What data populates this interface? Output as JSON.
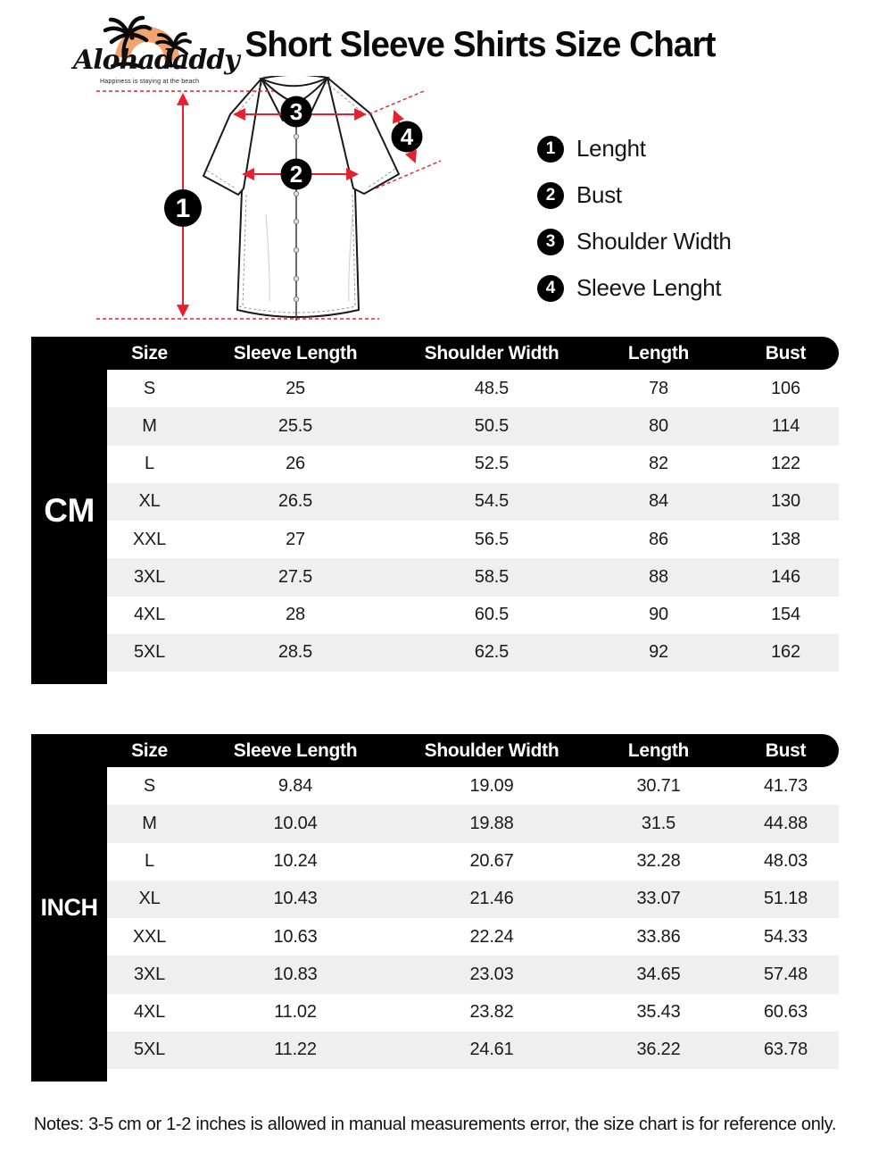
{
  "brand": {
    "name": "Alohadaddy",
    "tagline": "Happiness is staying at the beach"
  },
  "title": "Short Sleeve Shirts Size Chart",
  "legend": {
    "items": [
      {
        "num": "1",
        "label": "Lenght"
      },
      {
        "num": "2",
        "label": "Bust"
      },
      {
        "num": "3",
        "label": "Shoulder Width"
      },
      {
        "num": "4",
        "label": "Sleeve Lenght"
      }
    ]
  },
  "diagram": {
    "marker_1": "1",
    "marker_2": "2",
    "marker_3": "3",
    "marker_4": "4"
  },
  "tables": [
    {
      "unit": "CM",
      "headers": [
        "Size",
        "Sleeve Length",
        "Shoulder Width",
        "Length",
        "Bust"
      ],
      "rows": [
        [
          "S",
          "25",
          "48.5",
          "78",
          "106"
        ],
        [
          "M",
          "25.5",
          "50.5",
          "80",
          "114"
        ],
        [
          "L",
          "26",
          "52.5",
          "82",
          "122"
        ],
        [
          "XL",
          "26.5",
          "54.5",
          "84",
          "130"
        ],
        [
          "XXL",
          "27",
          "56.5",
          "86",
          "138"
        ],
        [
          "3XL",
          "27.5",
          "58.5",
          "88",
          "146"
        ],
        [
          "4XL",
          "28",
          "60.5",
          "90",
          "154"
        ],
        [
          "5XL",
          "28.5",
          "62.5",
          "92",
          "162"
        ]
      ]
    },
    {
      "unit": "INCH",
      "headers": [
        "Size",
        "Sleeve Length",
        "Shoulder Width",
        "Length",
        "Bust"
      ],
      "rows": [
        [
          "S",
          "9.84",
          "19.09",
          "30.71",
          "41.73"
        ],
        [
          "M",
          "10.04",
          "19.88",
          "31.5",
          "44.88"
        ],
        [
          "L",
          "10.24",
          "20.67",
          "32.28",
          "48.03"
        ],
        [
          "XL",
          "10.43",
          "21.46",
          "33.07",
          "51.18"
        ],
        [
          "XXL",
          "10.63",
          "22.24",
          "33.86",
          "54.33"
        ],
        [
          "3XL",
          "10.83",
          "23.03",
          "34.65",
          "57.48"
        ],
        [
          "4XL",
          "11.02",
          "23.82",
          "35.43",
          "60.63"
        ],
        [
          "5XL",
          "11.22",
          "24.61",
          "36.22",
          "63.78"
        ]
      ]
    }
  ],
  "notes": "Notes: 3-5 cm or 1-2 inches is allowed in manual measurements error, the size chart is for reference only.",
  "colors": {
    "accent_red": "#E8202E",
    "sun_orange": "#F2A46F",
    "row_alt_gray": "#EFEFEF",
    "black": "#000000"
  }
}
